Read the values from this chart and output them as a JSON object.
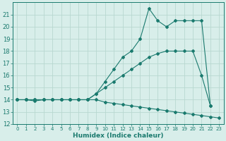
{
  "xlabel": "Humidex (Indice chaleur)",
  "background_color": "#d8eeea",
  "grid_color": "#b8d8d0",
  "line_color": "#1a7a6e",
  "xlim": [
    -0.5,
    23.5
  ],
  "ylim": [
    12,
    22
  ],
  "yticks": [
    12,
    13,
    14,
    15,
    16,
    17,
    18,
    19,
    20,
    21
  ],
  "xticks": [
    0,
    1,
    2,
    3,
    4,
    5,
    6,
    7,
    8,
    9,
    10,
    11,
    12,
    13,
    14,
    15,
    16,
    17,
    18,
    19,
    20,
    21,
    22,
    23
  ],
  "series": [
    [
      14.0,
      14.0,
      13.9,
      14.0,
      14.0,
      14.0,
      14.0,
      14.0,
      14.0,
      14.0,
      13.8,
      13.7,
      13.6,
      13.5,
      13.4,
      13.3,
      13.2,
      13.1,
      13.0,
      12.9,
      12.8,
      12.7,
      12.6,
      12.5
    ],
    [
      14.0,
      14.0,
      14.0,
      14.0,
      14.0,
      14.0,
      14.0,
      14.0,
      14.0,
      14.5,
      15.0,
      15.5,
      16.0,
      16.5,
      17.0,
      17.5,
      17.8,
      18.0,
      18.0,
      18.0,
      18.0,
      16.0,
      13.5,
      null
    ],
    [
      14.0,
      14.0,
      14.0,
      14.0,
      14.0,
      14.0,
      14.0,
      14.0,
      14.0,
      14.5,
      15.5,
      16.5,
      17.5,
      18.0,
      19.0,
      21.5,
      20.5,
      20.0,
      20.5,
      20.5,
      20.5,
      20.5,
      13.5,
      null
    ]
  ]
}
